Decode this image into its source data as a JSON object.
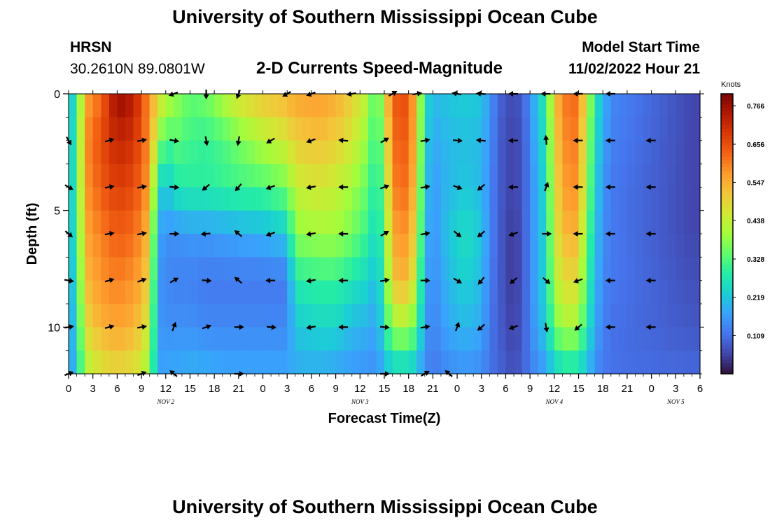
{
  "header": {
    "title": "University of Southern Mississippi Ocean Cube",
    "station": "HRSN",
    "coordinates": "30.2610N  89.0801W",
    "subtitle": "2-D Currents Speed-Magnitude",
    "model_start_label": "Model Start Time",
    "model_start_value": "11/02/2022 Hour 21"
  },
  "footer": {
    "title": "University of Southern Mississippi Ocean Cube"
  },
  "colors": {
    "colormap": [
      "#30123b",
      "#4145ab",
      "#4675ed",
      "#39a2fc",
      "#1bcfd4",
      "#24eca6",
      "#61fc6c",
      "#a4fc3b",
      "#d1e834",
      "#f3c63a",
      "#fe9b2d",
      "#f36315",
      "#d93806",
      "#b11901",
      "#7a0402"
    ],
    "arrow": "#000000",
    "axis": "#000000"
  },
  "chart_data": {
    "type": "heatmap",
    "title": "2-D Currents Speed-Magnitude",
    "xlabel": "Forecast Time(Z)",
    "ylabel": "Depth (ft)",
    "colorbar_label": "Knots",
    "colorbar_ticks": [
      0.109,
      0.219,
      0.328,
      0.438,
      0.547,
      0.656,
      0.766
    ],
    "colorbar_tick_labels": [
      "0.109",
      "0.219",
      "0.328",
      "0.438",
      "0.547",
      "0.656",
      "0.766"
    ],
    "vmin": 0.0,
    "vmax": 0.8,
    "x_units": "hours since Nov 2 00Z",
    "x_range": [
      0,
      78
    ],
    "x_ticks": [
      0,
      3,
      6,
      9,
      12,
      15,
      18,
      21,
      24,
      27,
      30,
      33,
      36,
      39,
      42,
      45,
      48,
      51,
      54,
      57,
      60,
      63,
      66,
      69,
      72,
      75,
      78
    ],
    "x_tick_labels": [
      "0",
      "3",
      "6",
      "9",
      "12",
      "15",
      "18",
      "21",
      "0",
      "3",
      "6",
      "9",
      "12",
      "15",
      "18",
      "21",
      "0",
      "3",
      "6",
      "9",
      "12",
      "15",
      "18",
      "21",
      "0",
      "3",
      "6"
    ],
    "date_labels": [
      {
        "hour": 12,
        "text": "NOV 2"
      },
      {
        "hour": 36,
        "text": "NOV 3"
      },
      {
        "hour": 60,
        "text": "NOV 4"
      },
      {
        "hour": 75,
        "text": "NOV 5"
      }
    ],
    "y_range": [
      0,
      12
    ],
    "y_ticks": [
      0,
      5,
      10
    ],
    "y_tick_labels": [
      "0",
      "5",
      "10"
    ],
    "heatmap_note": "speed (knots) by time column, depth rows 0,2,4,6,8,10,12 ft",
    "columns": [
      {
        "t": 0,
        "v": [
          0.2,
          0.2,
          0.2,
          0.2,
          0.18,
          0.16,
          0.15
        ]
      },
      {
        "t": 1,
        "v": [
          0.28,
          0.3,
          0.3,
          0.28,
          0.26,
          0.24,
          0.22
        ]
      },
      {
        "t": 2,
        "v": [
          0.55,
          0.58,
          0.57,
          0.55,
          0.52,
          0.48,
          0.4
        ]
      },
      {
        "t": 4,
        "v": [
          0.62,
          0.66,
          0.64,
          0.6,
          0.58,
          0.54,
          0.46
        ]
      },
      {
        "t": 6,
        "v": [
          0.78,
          0.72,
          0.68,
          0.64,
          0.6,
          0.56,
          0.48
        ]
      },
      {
        "t": 8,
        "v": [
          0.74,
          0.7,
          0.66,
          0.62,
          0.58,
          0.54,
          0.46
        ]
      },
      {
        "t": 9,
        "v": [
          0.66,
          0.64,
          0.62,
          0.58,
          0.55,
          0.5,
          0.44
        ]
      },
      {
        "t": 10,
        "v": [
          0.58,
          0.58,
          0.56,
          0.52,
          0.48,
          0.44,
          0.38
        ]
      },
      {
        "t": 11,
        "v": [
          0.5,
          0.4,
          0.26,
          0.18,
          0.16,
          0.16,
          0.17
        ]
      },
      {
        "t": 12,
        "v": [
          0.44,
          0.3,
          0.2,
          0.15,
          0.14,
          0.15,
          0.18
        ]
      },
      {
        "t": 13,
        "v": [
          0.4,
          0.34,
          0.27,
          0.15,
          0.13,
          0.15,
          0.18
        ]
      },
      {
        "t": 15,
        "v": [
          0.34,
          0.31,
          0.29,
          0.16,
          0.13,
          0.15,
          0.19
        ]
      },
      {
        "t": 17,
        "v": [
          0.36,
          0.3,
          0.29,
          0.16,
          0.12,
          0.14,
          0.19
        ]
      },
      {
        "t": 19,
        "v": [
          0.42,
          0.32,
          0.3,
          0.17,
          0.12,
          0.14,
          0.18
        ]
      },
      {
        "t": 21,
        "v": [
          0.48,
          0.36,
          0.31,
          0.18,
          0.12,
          0.14,
          0.18
        ]
      },
      {
        "t": 24,
        "v": [
          0.52,
          0.42,
          0.32,
          0.19,
          0.12,
          0.14,
          0.18
        ]
      },
      {
        "t": 27,
        "v": [
          0.54,
          0.46,
          0.36,
          0.22,
          0.12,
          0.14,
          0.18
        ]
      },
      {
        "t": 28,
        "v": [
          0.56,
          0.5,
          0.44,
          0.38,
          0.28,
          0.22,
          0.18
        ]
      },
      {
        "t": 31,
        "v": [
          0.57,
          0.52,
          0.46,
          0.4,
          0.3,
          0.24,
          0.18
        ]
      },
      {
        "t": 33,
        "v": [
          0.55,
          0.5,
          0.44,
          0.4,
          0.3,
          0.24,
          0.17
        ]
      },
      {
        "t": 35,
        "v": [
          0.5,
          0.46,
          0.4,
          0.36,
          0.27,
          0.2,
          0.16
        ]
      },
      {
        "t": 37,
        "v": [
          0.42,
          0.38,
          0.34,
          0.3,
          0.24,
          0.19,
          0.15
        ]
      },
      {
        "t": 38,
        "v": [
          0.3,
          0.28,
          0.26,
          0.24,
          0.2,
          0.17,
          0.15
        ]
      },
      {
        "t": 39,
        "v": [
          0.45,
          0.4,
          0.36,
          0.33,
          0.3,
          0.26,
          0.18
        ]
      },
      {
        "t": 40,
        "v": [
          0.64,
          0.62,
          0.6,
          0.56,
          0.52,
          0.4,
          0.22
        ]
      },
      {
        "t": 42,
        "v": [
          0.66,
          0.64,
          0.62,
          0.58,
          0.54,
          0.4,
          0.22
        ]
      },
      {
        "t": 43,
        "v": [
          0.5,
          0.5,
          0.48,
          0.45,
          0.4,
          0.32,
          0.2
        ]
      },
      {
        "t": 44,
        "v": [
          0.26,
          0.24,
          0.22,
          0.2,
          0.18,
          0.16,
          0.14
        ]
      },
      {
        "t": 45,
        "v": [
          0.2,
          0.18,
          0.16,
          0.15,
          0.14,
          0.13,
          0.12
        ]
      },
      {
        "t": 47,
        "v": [
          0.22,
          0.2,
          0.2,
          0.22,
          0.2,
          0.18,
          0.14
        ]
      },
      {
        "t": 49,
        "v": [
          0.23,
          0.21,
          0.22,
          0.26,
          0.24,
          0.2,
          0.15
        ]
      },
      {
        "t": 51,
        "v": [
          0.22,
          0.2,
          0.2,
          0.22,
          0.2,
          0.18,
          0.14
        ]
      },
      {
        "t": 52,
        "v": [
          0.16,
          0.15,
          0.14,
          0.14,
          0.13,
          0.12,
          0.11
        ]
      },
      {
        "t": 53,
        "v": [
          0.1,
          0.09,
          0.09,
          0.09,
          0.09,
          0.09,
          0.1
        ]
      },
      {
        "t": 55,
        "v": [
          0.06,
          0.05,
          0.05,
          0.04,
          0.04,
          0.05,
          0.07
        ]
      },
      {
        "t": 56,
        "v": [
          0.09,
          0.08,
          0.08,
          0.08,
          0.08,
          0.08,
          0.09
        ]
      },
      {
        "t": 57,
        "v": [
          0.14,
          0.13,
          0.13,
          0.13,
          0.13,
          0.13,
          0.12
        ]
      },
      {
        "t": 58,
        "v": [
          0.24,
          0.22,
          0.2,
          0.2,
          0.2,
          0.19,
          0.15
        ]
      },
      {
        "t": 59,
        "v": [
          0.28,
          0.26,
          0.25,
          0.24,
          0.24,
          0.22,
          0.16
        ]
      },
      {
        "t": 60,
        "v": [
          0.52,
          0.5,
          0.48,
          0.46,
          0.42,
          0.36,
          0.22
        ]
      },
      {
        "t": 62,
        "v": [
          0.64,
          0.62,
          0.6,
          0.56,
          0.5,
          0.42,
          0.26
        ]
      },
      {
        "t": 63,
        "v": [
          0.6,
          0.58,
          0.56,
          0.52,
          0.46,
          0.38,
          0.24
        ]
      },
      {
        "t": 64,
        "v": [
          0.46,
          0.42,
          0.4,
          0.36,
          0.32,
          0.28,
          0.2
        ]
      },
      {
        "t": 65,
        "v": [
          0.28,
          0.26,
          0.24,
          0.22,
          0.2,
          0.18,
          0.15
        ]
      },
      {
        "t": 66,
        "v": [
          0.2,
          0.18,
          0.16,
          0.15,
          0.14,
          0.13,
          0.12
        ]
      },
      {
        "t": 67,
        "v": [
          0.14,
          0.13,
          0.12,
          0.12,
          0.12,
          0.11,
          0.11
        ]
      },
      {
        "t": 77,
        "v": [
          0.06,
          0.06,
          0.06,
          0.06,
          0.07,
          0.08,
          0.1
        ]
      }
    ],
    "arrow_note": "current direction (degrees, math convention: 0=east, 90=north) at sampled times/depths",
    "arrows": [
      {
        "t": 13,
        "d": 0,
        "dir": 200
      },
      {
        "t": 17,
        "d": 0,
        "dir": 270
      },
      {
        "t": 21,
        "d": 0,
        "dir": 250
      },
      {
        "t": 27,
        "d": 0,
        "dir": 210
      },
      {
        "t": 30,
        "d": 0,
        "dir": 200
      },
      {
        "t": 35,
        "d": 0,
        "dir": 190
      },
      {
        "t": 40,
        "d": 0,
        "dir": 30
      },
      {
        "t": 43,
        "d": 0,
        "dir": 10
      },
      {
        "t": 48,
        "d": 0,
        "dir": 170
      },
      {
        "t": 51,
        "d": 0,
        "dir": 175
      },
      {
        "t": 55,
        "d": 0,
        "dir": 180
      },
      {
        "t": 59,
        "d": 0,
        "dir": 180
      },
      {
        "t": 63,
        "d": 0,
        "dir": 180
      },
      {
        "t": 67,
        "d": 0,
        "dir": 180
      },
      {
        "t": 0,
        "d": 2,
        "dir": -60
      },
      {
        "t": 5,
        "d": 2,
        "dir": 15
      },
      {
        "t": 9,
        "d": 2,
        "dir": 10
      },
      {
        "t": 13,
        "d": 2,
        "dir": -10
      },
      {
        "t": 17,
        "d": 2,
        "dir": 280
      },
      {
        "t": 21,
        "d": 2,
        "dir": 260
      },
      {
        "t": 25,
        "d": 2,
        "dir": 210
      },
      {
        "t": 30,
        "d": 2,
        "dir": 200
      },
      {
        "t": 34,
        "d": 2,
        "dir": 175
      },
      {
        "t": 39,
        "d": 2,
        "dir": 30
      },
      {
        "t": 44,
        "d": 2,
        "dir": 10
      },
      {
        "t": 48,
        "d": 2,
        "dir": -5
      },
      {
        "t": 51,
        "d": 2,
        "dir": 175
      },
      {
        "t": 55,
        "d": 2,
        "dir": 180
      },
      {
        "t": 59,
        "d": 2,
        "dir": 95
      },
      {
        "t": 63,
        "d": 2,
        "dir": 180
      },
      {
        "t": 67,
        "d": 2,
        "dir": 180
      },
      {
        "t": 72,
        "d": 2,
        "dir": 180
      },
      {
        "t": 0,
        "d": 4,
        "dir": -30
      },
      {
        "t": 5,
        "d": 4,
        "dir": 10
      },
      {
        "t": 9,
        "d": 4,
        "dir": 10
      },
      {
        "t": 13,
        "d": 4,
        "dir": -5
      },
      {
        "t": 17,
        "d": 4,
        "dir": 220
      },
      {
        "t": 21,
        "d": 4,
        "dir": 230
      },
      {
        "t": 25,
        "d": 4,
        "dir": 200
      },
      {
        "t": 30,
        "d": 4,
        "dir": 190
      },
      {
        "t": 34,
        "d": 4,
        "dir": 180
      },
      {
        "t": 39,
        "d": 4,
        "dir": 20
      },
      {
        "t": 44,
        "d": 4,
        "dir": 10
      },
      {
        "t": 48,
        "d": 4,
        "dir": -20
      },
      {
        "t": 51,
        "d": 4,
        "dir": 220
      },
      {
        "t": 55,
        "d": 4,
        "dir": 180
      },
      {
        "t": 59,
        "d": 4,
        "dir": 70
      },
      {
        "t": 63,
        "d": 4,
        "dir": 180
      },
      {
        "t": 67,
        "d": 4,
        "dir": 180
      },
      {
        "t": 72,
        "d": 4,
        "dir": 180
      },
      {
        "t": 0,
        "d": 6,
        "dir": -40
      },
      {
        "t": 5,
        "d": 6,
        "dir": 10
      },
      {
        "t": 9,
        "d": 6,
        "dir": 10
      },
      {
        "t": 13,
        "d": 6,
        "dir": 0
      },
      {
        "t": 17,
        "d": 6,
        "dir": 185
      },
      {
        "t": 21,
        "d": 6,
        "dir": 140
      },
      {
        "t": 25,
        "d": 6,
        "dir": 200
      },
      {
        "t": 30,
        "d": 6,
        "dir": 190
      },
      {
        "t": 34,
        "d": 6,
        "dir": 180
      },
      {
        "t": 39,
        "d": 6,
        "dir": 30
      },
      {
        "t": 44,
        "d": 6,
        "dir": 10
      },
      {
        "t": 48,
        "d": 6,
        "dir": -40
      },
      {
        "t": 51,
        "d": 6,
        "dir": 220
      },
      {
        "t": 55,
        "d": 6,
        "dir": 200
      },
      {
        "t": 59,
        "d": 6,
        "dir": 0
      },
      {
        "t": 63,
        "d": 6,
        "dir": 180
      },
      {
        "t": 67,
        "d": 6,
        "dir": 180
      },
      {
        "t": 72,
        "d": 6,
        "dir": 180
      },
      {
        "t": 0,
        "d": 8,
        "dir": -10
      },
      {
        "t": 5,
        "d": 8,
        "dir": 15
      },
      {
        "t": 9,
        "d": 8,
        "dir": 20
      },
      {
        "t": 13,
        "d": 8,
        "dir": 30
      },
      {
        "t": 17,
        "d": 8,
        "dir": -5
      },
      {
        "t": 21,
        "d": 8,
        "dir": 140
      },
      {
        "t": 25,
        "d": 8,
        "dir": 180
      },
      {
        "t": 30,
        "d": 8,
        "dir": 190
      },
      {
        "t": 34,
        "d": 8,
        "dir": 180
      },
      {
        "t": 39,
        "d": 8,
        "dir": 10
      },
      {
        "t": 44,
        "d": 8,
        "dir": 0
      },
      {
        "t": 48,
        "d": 8,
        "dir": -30
      },
      {
        "t": 51,
        "d": 8,
        "dir": 230
      },
      {
        "t": 55,
        "d": 8,
        "dir": 220
      },
      {
        "t": 59,
        "d": 8,
        "dir": -40
      },
      {
        "t": 63,
        "d": 8,
        "dir": 200
      },
      {
        "t": 67,
        "d": 8,
        "dir": 180
      },
      {
        "t": 72,
        "d": 8,
        "dir": 180
      },
      {
        "t": 0,
        "d": 10,
        "dir": 10
      },
      {
        "t": 5,
        "d": 10,
        "dir": 15
      },
      {
        "t": 9,
        "d": 10,
        "dir": 10
      },
      {
        "t": 13,
        "d": 10,
        "dir": 70
      },
      {
        "t": 17,
        "d": 10,
        "dir": 20
      },
      {
        "t": 21,
        "d": 10,
        "dir": 0
      },
      {
        "t": 25,
        "d": 10,
        "dir": -5
      },
      {
        "t": 30,
        "d": 10,
        "dir": 190
      },
      {
        "t": 34,
        "d": 10,
        "dir": 180
      },
      {
        "t": 39,
        "d": 10,
        "dir": -5
      },
      {
        "t": 44,
        "d": 10,
        "dir": 10
      },
      {
        "t": 48,
        "d": 10,
        "dir": 70
      },
      {
        "t": 51,
        "d": 10,
        "dir": 220
      },
      {
        "t": 55,
        "d": 10,
        "dir": 200
      },
      {
        "t": 59,
        "d": 10,
        "dir": -80
      },
      {
        "t": 63,
        "d": 10,
        "dir": 220
      },
      {
        "t": 67,
        "d": 10,
        "dir": 180
      },
      {
        "t": 72,
        "d": 10,
        "dir": 180
      },
      {
        "t": 0,
        "d": 12,
        "dir": 20
      },
      {
        "t": 9,
        "d": 12,
        "dir": 20
      },
      {
        "t": 13,
        "d": 12,
        "dir": 140
      },
      {
        "t": 21,
        "d": 12,
        "dir": 0
      },
      {
        "t": 39,
        "d": 12,
        "dir": 0
      },
      {
        "t": 44,
        "d": 12,
        "dir": 30
      },
      {
        "t": 47,
        "d": 12,
        "dir": 140
      }
    ]
  }
}
